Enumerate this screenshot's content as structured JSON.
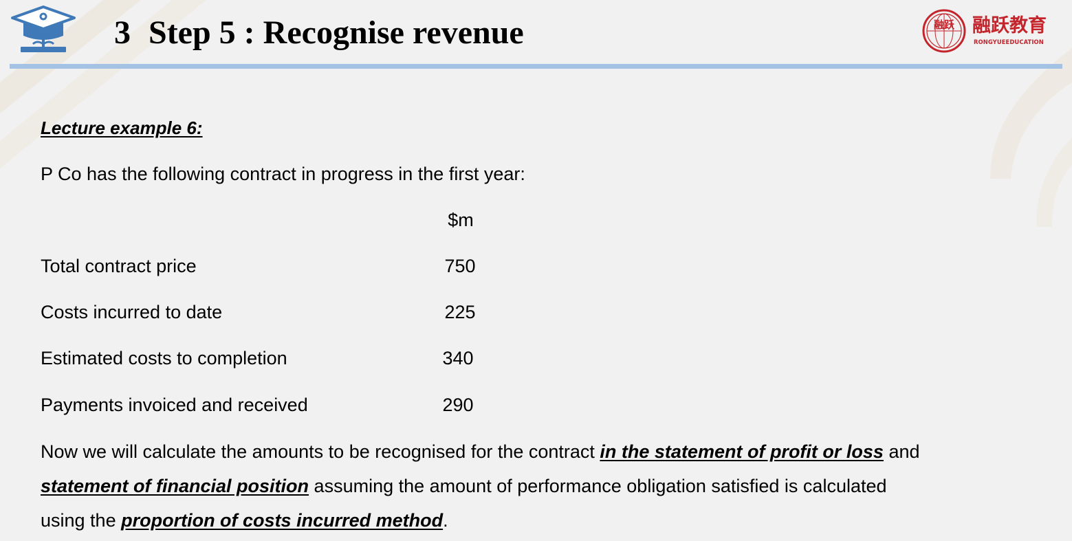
{
  "header": {
    "section_number": "3",
    "title": "Step 5 : Recognise revenue",
    "logo_brand_cn": "融跃教育",
    "logo_brand_en": "RONGYUEEDUCATION",
    "logo_seal_text": "融跃"
  },
  "icons": {
    "header_left": "graduation-cap-icon",
    "header_right": "brand-seal-logo"
  },
  "colors": {
    "background": "#f1f1f1",
    "header_rule": "#a3c2e4",
    "icon_blue": "#3f79b8",
    "brand_red": "#c4242b",
    "decoration": "#eae2d2"
  },
  "body": {
    "lecture_label": "Lecture example 6:",
    "intro": "P Co has the following contract in progress in the first year:",
    "unit_header": "$m",
    "rows": [
      {
        "label": "Total contract price",
        "value": "750"
      },
      {
        "label": "Costs incurred to date",
        "value": "225"
      },
      {
        "label": "Estimated costs to completion",
        "value": "340"
      },
      {
        "label": "Payments invoiced and received",
        "value": "290"
      }
    ],
    "paragraph": {
      "t1": "Now we will calculate the amounts to be recognised for the contract ",
      "e1": "in the statement of profit or loss",
      "t2": " and ",
      "e2": "statement of financial position",
      "t3": " assuming the amount of performance obligation satisfied is calculated using the ",
      "e3": "proportion of costs incurred method",
      "t4": "."
    }
  }
}
